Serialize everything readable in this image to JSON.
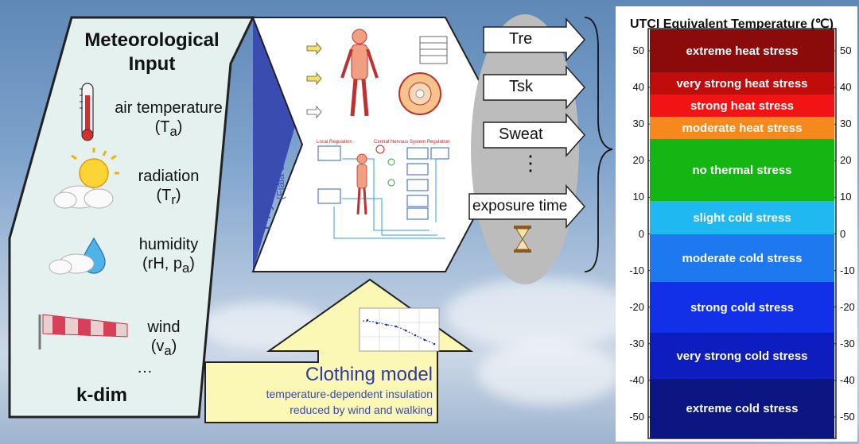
{
  "meteo": {
    "title_line1": "Meteorological",
    "title_line2": "Input",
    "inputs": [
      {
        "label": "air temperature",
        "symbol": "(T",
        "sub": "a",
        "close": ")",
        "icon": "thermometer-icon"
      },
      {
        "label": "radiation",
        "symbol": "(T",
        "sub": "r",
        "close": ")",
        "icon": "sun-cloud-icon"
      },
      {
        "label": "humidity",
        "symbol": "(rH, p",
        "sub": "a",
        "close": ")",
        "icon": "water-drop-icon"
      },
      {
        "label": "wind",
        "symbol": "(v",
        "sub": "a",
        "close": ")",
        "icon": "windsock-icon"
      }
    ],
    "ellipsis": "…",
    "kdim": "k-dim"
  },
  "physio": {
    "label": "Physiological model",
    "citation": "(Fiala et al. 2007)"
  },
  "outputs": {
    "items": [
      "Tre",
      "Tsk",
      "Sweat",
      "⋮",
      "exposure time"
    ],
    "icon": "hourglass-icon"
  },
  "clothing": {
    "title": "Clothing model",
    "line1": "temperature-dependent insulation",
    "line2": "reduced by wind and walking"
  },
  "utci": {
    "title": "UTCI Equivalent Temperature (℃)",
    "ticks": [
      50,
      40,
      30,
      20,
      10,
      0,
      -10,
      -20,
      -30,
      -40,
      -50
    ],
    "bands": [
      {
        "label": "extreme heat stress",
        "color": "#8b0b0b"
      },
      {
        "label": "very strong heat stress",
        "color": "#c10c0c"
      },
      {
        "label": "strong heat stress",
        "color": "#f21414"
      },
      {
        "label": "moderate heat stress",
        "color": "#f5891e"
      },
      {
        "label": "no thermal stress",
        "color": "#14b614"
      },
      {
        "label": "slight cold stress",
        "color": "#1fb8f0"
      },
      {
        "label": "moderate cold stress",
        "color": "#1e78ef"
      },
      {
        "label": "strong cold stress",
        "color": "#1130e8"
      },
      {
        "label": "very strong cold stress",
        "color": "#0e1dbd"
      },
      {
        "label": "extreme cold stress",
        "color": "#0b1682"
      }
    ]
  }
}
